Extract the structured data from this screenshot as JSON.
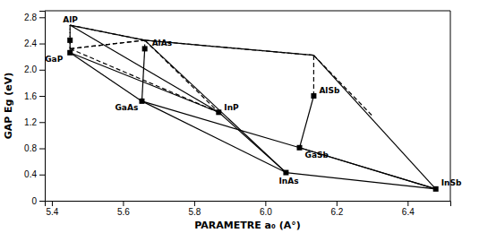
{
  "chart_data": {
    "type": "scatter",
    "xlabel": "PARAMETRE  a₀ (A°)",
    "ylabel": "GAP  Eg (eV)",
    "xlim": [
      5.38,
      6.52
    ],
    "ylim": [
      0,
      2.9
    ],
    "xticks": [
      5.4,
      5.6,
      5.8,
      {
        "value": 6.0,
        "label": "6.0"
      },
      6.2,
      6.4
    ],
    "yticks": [
      0,
      0.4,
      0.8,
      1.2,
      1.6,
      {
        "value": 2.0,
        "label": "2.0"
      },
      2.4,
      2.8
    ],
    "grid": false,
    "color": "#000000",
    "series": [
      {
        "type": "line",
        "line_style": "solid",
        "x": [
          5.451,
          5.661
        ],
        "values": [
          2.68,
          2.45
        ]
      },
      {
        "type": "line",
        "line_style": "solid",
        "x": [
          5.661,
          6.136
        ],
        "values": [
          2.45,
          2.22
        ]
      },
      {
        "type": "line",
        "line_style": "solid",
        "x": [
          6.136,
          6.479
        ],
        "values": [
          2.22,
          0.18
        ]
      },
      {
        "type": "line",
        "line_style": "solid",
        "x": [
          5.451,
          5.653
        ],
        "values": [
          2.26,
          1.52
        ]
      },
      {
        "type": "line",
        "line_style": "solid",
        "x": [
          5.653,
          6.096
        ],
        "values": [
          1.52,
          0.81
        ]
      },
      {
        "type": "line",
        "line_style": "solid",
        "x": [
          6.096,
          6.479
        ],
        "values": [
          0.81,
          0.18
        ]
      },
      {
        "type": "line",
        "line_style": "solid",
        "x": [
          5.869,
          6.058
        ],
        "values": [
          1.35,
          0.43
        ]
      },
      {
        "type": "line",
        "line_style": "solid",
        "x": [
          6.058,
          6.479
        ],
        "values": [
          0.43,
          0.18
        ]
      },
      {
        "type": "line",
        "line_style": "solid",
        "x": [
          5.451,
          5.451
        ],
        "values": [
          2.45,
          2.26
        ]
      },
      {
        "type": "line",
        "line_style": "solid",
        "x": [
          5.451,
          5.869
        ],
        "values": [
          2.26,
          1.35
        ]
      },
      {
        "type": "line",
        "line_style": "solid",
        "x": [
          5.451,
          5.869
        ],
        "values": [
          2.68,
          1.35
        ]
      },
      {
        "type": "line",
        "line_style": "solid",
        "x": [
          5.661,
          5.653
        ],
        "values": [
          2.32,
          1.52
        ]
      },
      {
        "type": "line",
        "line_style": "solid",
        "x": [
          5.653,
          6.058
        ],
        "values": [
          1.52,
          0.43
        ]
      },
      {
        "type": "line",
        "line_style": "solid",
        "x": [
          5.661,
          6.058
        ],
        "values": [
          2.45,
          0.43
        ]
      },
      {
        "type": "line",
        "line_style": "solid",
        "x": [
          6.136,
          6.096
        ],
        "values": [
          1.6,
          0.81
        ]
      },
      {
        "type": "line",
        "line_style": "solid",
        "x": [
          6.096,
          6.479
        ],
        "values": [
          0.81,
          0.18
        ]
      },
      {
        "type": "line",
        "line_style": "dashed",
        "x": [
          5.451,
          5.661
        ],
        "values": [
          2.68,
          2.45
        ]
      },
      {
        "type": "line",
        "line_style": "dashed",
        "x": [
          5.661,
          6.136
        ],
        "values": [
          2.45,
          2.22
        ]
      },
      {
        "type": "line",
        "line_style": "dashed",
        "x": [
          5.451,
          5.661
        ],
        "values": [
          2.32,
          2.45
        ]
      },
      {
        "type": "line",
        "line_style": "dashed",
        "x": [
          5.451,
          5.869
        ],
        "values": [
          2.32,
          1.35
        ]
      },
      {
        "type": "line",
        "line_style": "dashed",
        "x": [
          5.451,
          5.451
        ],
        "values": [
          2.68,
          2.32
        ]
      },
      {
        "type": "line",
        "line_style": "dashed",
        "x": [
          5.451,
          5.661
        ],
        "values": [
          2.32,
          2.45
        ]
      },
      {
        "type": "line",
        "line_style": "dashed",
        "x": [
          5.661,
          5.869
        ],
        "values": [
          2.45,
          1.35
        ]
      },
      {
        "type": "line",
        "line_style": "dashed",
        "x": [
          6.136,
          6.136
        ],
        "values": [
          1.6,
          2.22
        ]
      },
      {
        "type": "line",
        "line_style": "dashed",
        "x": [
          6.136,
          6.3
        ],
        "values": [
          2.22,
          1.3
        ]
      },
      {
        "type": "line",
        "line_style": "dashed",
        "x": [
          5.451,
          5.451
        ],
        "values": [
          2.45,
          2.68
        ]
      },
      {
        "type": "line",
        "line_style": "dashed",
        "x": [
          5.661,
          5.661
        ],
        "values": [
          2.32,
          2.45
        ]
      },
      {
        "type": "scatter",
        "marker": "square",
        "x": [
          5.451,
          5.451,
          5.661,
          5.653,
          5.869,
          6.136,
          6.058,
          6.096,
          6.479
        ],
        "values": [
          2.45,
          2.26,
          2.32,
          1.52,
          1.35,
          1.6,
          0.43,
          0.81,
          0.18
        ]
      }
    ],
    "annotations": [
      {
        "text": "AlP",
        "x": 5.451,
        "y": 2.68
      },
      {
        "text": "GaP",
        "x": 5.451,
        "y": 2.26
      },
      {
        "text": "AlAs",
        "x": 5.661,
        "y": 2.32
      },
      {
        "text": "GaAs",
        "x": 5.653,
        "y": 1.52
      },
      {
        "text": "InP",
        "x": 5.869,
        "y": 1.35
      },
      {
        "text": "AlSb",
        "x": 6.136,
        "y": 1.6
      },
      {
        "text": "InAs",
        "x": 6.058,
        "y": 0.43
      },
      {
        "text": "GaSb",
        "x": 6.096,
        "y": 0.81
      },
      {
        "text": "InSb",
        "x": 6.479,
        "y": 0.18
      }
    ]
  }
}
